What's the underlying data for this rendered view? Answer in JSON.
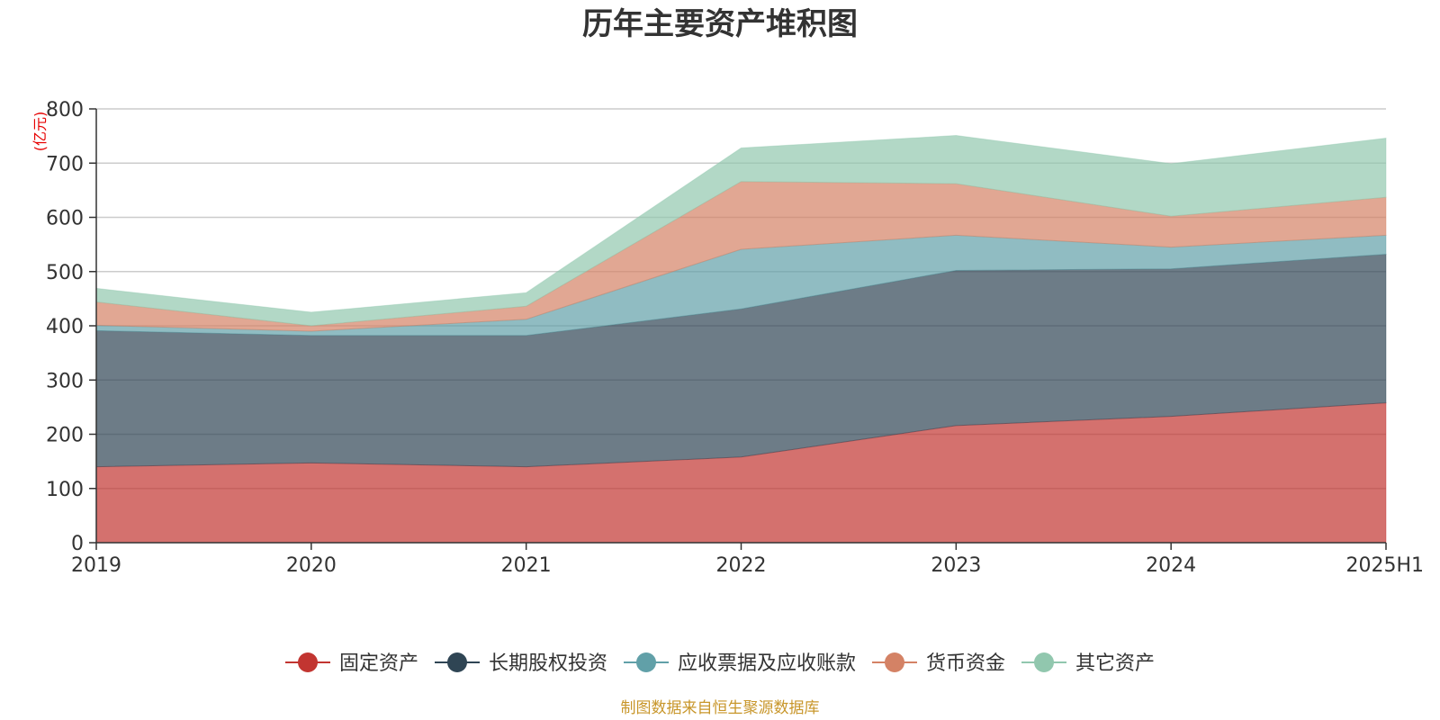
{
  "chart_data": {
    "type": "area",
    "stacked": true,
    "title": "历年主要资产堆积图",
    "unit_label": "(亿元)",
    "categories": [
      "2019",
      "2020",
      "2021",
      "2022",
      "2023",
      "2024",
      "2025H1"
    ],
    "ylim": [
      0,
      800
    ],
    "yticks": [
      0,
      100,
      200,
      300,
      400,
      500,
      600,
      700,
      800
    ],
    "grid": true,
    "legend_position": "bottom",
    "series": [
      {
        "name": "固定资产",
        "color": "#c23531",
        "values": [
          140,
          147,
          140,
          158,
          216,
          233,
          258
        ]
      },
      {
        "name": "长期股权投资",
        "color": "#2f4554",
        "values": [
          251,
          235,
          242,
          273,
          286,
          272,
          274
        ]
      },
      {
        "name": "应收票据及应收账款",
        "color": "#61a0a8",
        "values": [
          10,
          8,
          30,
          110,
          65,
          40,
          35
        ]
      },
      {
        "name": "货币资金",
        "color": "#d48265",
        "values": [
          43,
          10,
          24,
          125,
          95,
          57,
          70
        ]
      },
      {
        "name": "其它资产",
        "color": "#91c7ae",
        "values": [
          25,
          25,
          25,
          62,
          89,
          97,
          109
        ]
      }
    ],
    "source_note": "制图数据来自恒生聚源数据库"
  }
}
